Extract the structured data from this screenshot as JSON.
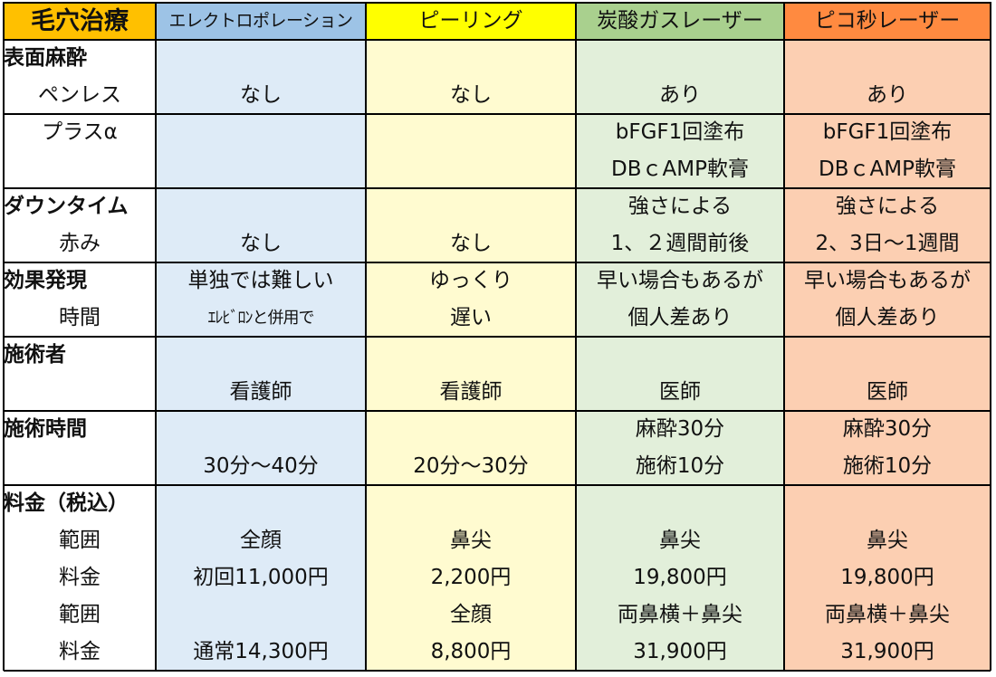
{
  "colors": {
    "label_bg": "#ffffff",
    "corner_bg": "#ffc000",
    "electro_header": "#9dc3e6",
    "electro_body": "#deebf7",
    "peeling_header": "#ffff00",
    "peeling_body": "#fffbd0",
    "co2_header": "#a9d08e",
    "co2_body": "#e2efda",
    "pico_header": "#ff8a40",
    "pico_body": "#fccfb2",
    "grid_line": "#000000"
  },
  "table": {
    "title": "毛穴治療",
    "columns": [
      "エレクトロポレーション",
      "ピーリング",
      "炭酸ガスレーザー",
      "ピコ秒レーザー"
    ],
    "column_colors": [
      {
        "header": "#9dc3e6",
        "body": "#deebf7"
      },
      {
        "header": "#ffff00",
        "body": "#fffbd0"
      },
      {
        "header": "#a9d08e",
        "body": "#e2efda"
      },
      {
        "header": "#ff8a40",
        "body": "#fccfb2"
      }
    ],
    "rows": [
      {
        "label": "表面麻酔",
        "label_bold": true,
        "values": [
          "",
          "",
          "",
          ""
        ]
      },
      {
        "label": "ペンレス",
        "label_bold": false,
        "values": [
          "なし",
          "なし",
          "あり",
          "あり"
        ]
      },
      {
        "label": "プラスα",
        "label_bold": false,
        "values": [
          "",
          "",
          "bFGF1回塗布",
          "bFGF1回塗布"
        ]
      },
      {
        "label": "",
        "label_bold": false,
        "values": [
          "",
          "",
          "DBｃAMP軟膏",
          "DBｃAMP軟膏"
        ]
      },
      {
        "label": "ダウンタイム",
        "label_bold": true,
        "values": [
          "",
          "",
          "強さによる",
          "強さによる"
        ]
      },
      {
        "label": "赤み",
        "label_bold": false,
        "values": [
          "なし",
          "なし",
          "1、２週間前後",
          "2、3日～1週間"
        ]
      },
      {
        "label": "効果発現",
        "label_bold": true,
        "values": [
          "単独では難しい",
          "ゆっくり",
          "早い場合もあるが",
          "早い場合もあるが"
        ]
      },
      {
        "label": "時間",
        "label_bold": false,
        "values": [
          "ｴﾚﾋﾞﾛﾝと併用で",
          "遅い",
          "個人差あり",
          "個人差あり"
        ]
      },
      {
        "label": "施術者",
        "label_bold": true,
        "values": [
          "",
          "",
          "",
          ""
        ]
      },
      {
        "label": "",
        "label_bold": false,
        "values": [
          "看護師",
          "看護師",
          "医師",
          "医師"
        ]
      },
      {
        "label": "施術時間",
        "label_bold": true,
        "values": [
          "",
          "",
          "麻酔30分",
          "麻酔30分"
        ]
      },
      {
        "label": "",
        "label_bold": false,
        "values": [
          "30分～40分",
          "20分～30分",
          "施術10分",
          "施術10分"
        ]
      },
      {
        "label": "料金（税込）",
        "label_bold": true,
        "values": [
          "",
          "",
          "",
          ""
        ]
      },
      {
        "label": "範囲",
        "label_bold": false,
        "values": [
          "全顔",
          "鼻尖",
          "鼻尖",
          "鼻尖"
        ]
      },
      {
        "label": "料金",
        "label_bold": false,
        "values": [
          "初回11,000円",
          "2,200円",
          "19,800円",
          "19,800円"
        ]
      },
      {
        "label": "範囲",
        "label_bold": false,
        "values": [
          "",
          "全顔",
          "両鼻横＋鼻尖",
          "両鼻横＋鼻尖"
        ]
      },
      {
        "label": "料金",
        "label_bold": false,
        "values": [
          "通常14,300円",
          "8,800円",
          "31,900円",
          "31,900円"
        ]
      }
    ]
  }
}
